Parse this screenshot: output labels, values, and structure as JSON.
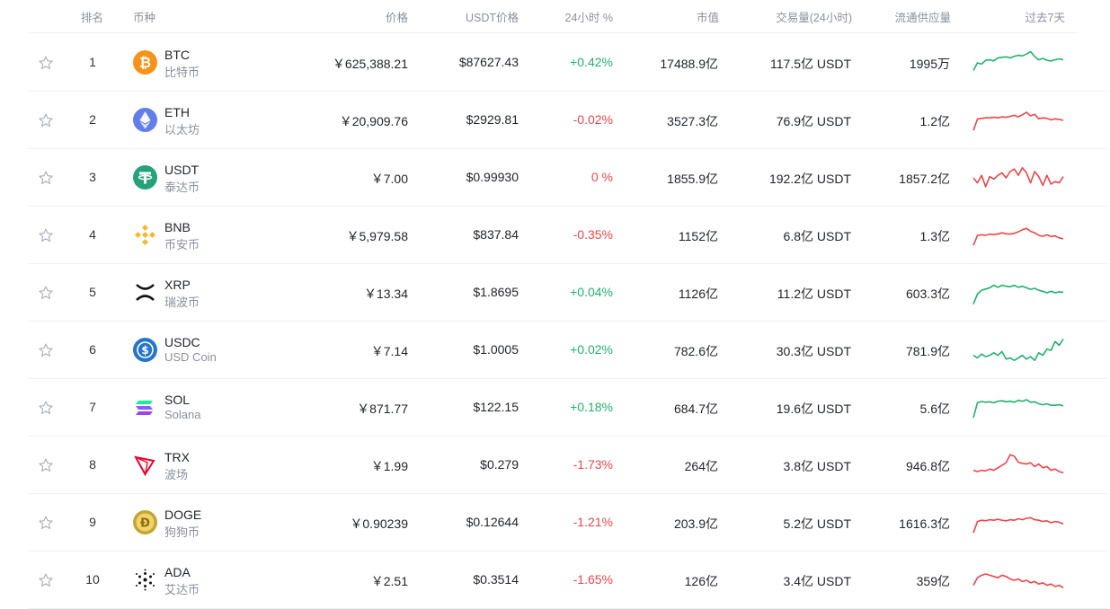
{
  "header": {
    "rank": "排名",
    "coin": "币种",
    "price": "价格",
    "usdt_price": "USDT价格",
    "change_24h": "24小时 %",
    "market_cap": "市值",
    "volume_24h": "交易量(24小时)",
    "supply": "流通供应量",
    "last_7d": "过去7天"
  },
  "colors": {
    "up": "#20b26c",
    "down": "#ef454a"
  },
  "rows": [
    {
      "rank": "1",
      "symbol": "BTC",
      "name": "比特币",
      "icon": "btc-icon",
      "price": "￥625,388.21",
      "usdt": "$87627.43",
      "change": "+0.42%",
      "trend": "up",
      "cap": "17488.9亿",
      "volume": "117.5亿 USDT",
      "supply": "1995万",
      "spark": [
        0.2,
        0.5,
        0.45,
        0.6,
        0.62,
        0.58,
        0.7,
        0.72,
        0.74,
        0.7,
        0.76,
        0.8,
        0.78,
        0.85,
        0.95,
        0.75,
        0.62,
        0.68,
        0.6,
        0.58,
        0.62,
        0.66,
        0.62
      ]
    },
    {
      "rank": "2",
      "symbol": "ETH",
      "name": "以太坊",
      "icon": "eth-icon",
      "price": "￥20,909.76",
      "usdt": "$2929.81",
      "change": "-0.02%",
      "trend": "down",
      "cap": "3527.3亿",
      "volume": "76.9亿 USDT",
      "supply": "1.2亿",
      "spark": [
        0.1,
        0.55,
        0.58,
        0.6,
        0.6,
        0.62,
        0.6,
        0.64,
        0.62,
        0.66,
        0.7,
        0.64,
        0.72,
        0.82,
        0.68,
        0.74,
        0.56,
        0.6,
        0.58,
        0.52,
        0.56,
        0.54,
        0.5
      ]
    },
    {
      "rank": "3",
      "symbol": "USDT",
      "name": "泰达币",
      "icon": "usdt-icon",
      "price": "￥7.00",
      "usdt": "$0.99930",
      "change": "0 %",
      "trend": "down",
      "cap": "1855.9亿",
      "volume": "192.2亿 USDT",
      "supply": "1857.2亿",
      "spark": [
        0.5,
        0.3,
        0.6,
        0.15,
        0.55,
        0.45,
        0.6,
        0.7,
        0.5,
        0.75,
        0.85,
        0.6,
        0.9,
        0.7,
        0.3,
        0.75,
        0.55,
        0.2,
        0.6,
        0.25,
        0.35,
        0.3,
        0.55
      ]
    },
    {
      "rank": "4",
      "symbol": "BNB",
      "name": "币安币",
      "icon": "bnb-icon",
      "price": "￥5,979.58",
      "usdt": "$837.84",
      "change": "-0.35%",
      "trend": "down",
      "cap": "1152亿",
      "volume": "6.8亿 USDT",
      "supply": "1.3亿",
      "spark": [
        0.1,
        0.5,
        0.52,
        0.5,
        0.55,
        0.53,
        0.55,
        0.6,
        0.56,
        0.55,
        0.58,
        0.64,
        0.72,
        0.78,
        0.66,
        0.6,
        0.5,
        0.46,
        0.52,
        0.45,
        0.48,
        0.4,
        0.36
      ]
    },
    {
      "rank": "5",
      "symbol": "XRP",
      "name": "瑞波币",
      "icon": "xrp-icon",
      "price": "￥13.34",
      "usdt": "$1.8695",
      "change": "+0.04%",
      "trend": "up",
      "cap": "1126亿",
      "volume": "11.2亿 USDT",
      "supply": "603.3亿",
      "spark": [
        0.05,
        0.45,
        0.6,
        0.65,
        0.7,
        0.8,
        0.72,
        0.8,
        0.76,
        0.74,
        0.8,
        0.72,
        0.76,
        0.7,
        0.64,
        0.68,
        0.6,
        0.56,
        0.5,
        0.56,
        0.5,
        0.54,
        0.52
      ]
    },
    {
      "rank": "6",
      "symbol": "USDC",
      "name": "USD Coin",
      "icon": "usdc-icon",
      "price": "￥7.14",
      "usdt": "$1.0005",
      "change": "+0.02%",
      "trend": "up",
      "cap": "782.6亿",
      "volume": "30.3亿 USDT",
      "supply": "781.9亿",
      "spark": [
        0.3,
        0.2,
        0.35,
        0.25,
        0.3,
        0.4,
        0.3,
        0.45,
        0.15,
        0.2,
        0.1,
        0.2,
        0.3,
        0.15,
        0.25,
        0.1,
        0.4,
        0.3,
        0.55,
        0.5,
        0.85,
        0.7,
        0.95
      ]
    },
    {
      "rank": "7",
      "symbol": "SOL",
      "name": "Solana",
      "icon": "sol-icon",
      "price": "￥871.77",
      "usdt": "$122.15",
      "change": "+0.18%",
      "trend": "up",
      "cap": "684.7亿",
      "volume": "19.6亿 USDT",
      "supply": "5.6亿",
      "spark": [
        0.1,
        0.7,
        0.75,
        0.72,
        0.74,
        0.7,
        0.76,
        0.78,
        0.74,
        0.76,
        0.72,
        0.8,
        0.76,
        0.82,
        0.72,
        0.74,
        0.66,
        0.62,
        0.66,
        0.6,
        0.6,
        0.62,
        0.58
      ]
    },
    {
      "rank": "8",
      "symbol": "TRX",
      "name": "波场",
      "icon": "trx-icon",
      "price": "￥1.99",
      "usdt": "$0.279",
      "change": "-1.73%",
      "trend": "down",
      "cap": "264亿",
      "volume": "3.8亿 USDT",
      "supply": "946.8亿",
      "spark": [
        0.3,
        0.25,
        0.3,
        0.28,
        0.35,
        0.3,
        0.4,
        0.5,
        0.6,
        0.92,
        0.86,
        0.62,
        0.58,
        0.55,
        0.6,
        0.45,
        0.55,
        0.4,
        0.45,
        0.3,
        0.35,
        0.25,
        0.2
      ]
    },
    {
      "rank": "9",
      "symbol": "DOGE",
      "name": "狗狗币",
      "icon": "doge-icon",
      "price": "￥0.90239",
      "usdt": "$0.12644",
      "change": "-1.21%",
      "trend": "down",
      "cap": "203.9亿",
      "volume": "5.2亿 USDT",
      "supply": "1616.3亿",
      "spark": [
        0.1,
        0.55,
        0.6,
        0.58,
        0.62,
        0.6,
        0.64,
        0.6,
        0.58,
        0.62,
        0.6,
        0.66,
        0.62,
        0.68,
        0.7,
        0.62,
        0.6,
        0.55,
        0.58,
        0.5,
        0.55,
        0.52,
        0.45
      ]
    },
    {
      "rank": "10",
      "symbol": "ADA",
      "name": "艾达币",
      "icon": "ada-icon",
      "price": "￥2.51",
      "usdt": "$0.3514",
      "change": "-1.65%",
      "trend": "down",
      "cap": "126亿",
      "volume": "3.4亿 USDT",
      "supply": "359亿",
      "spark": [
        0.3,
        0.6,
        0.7,
        0.75,
        0.7,
        0.65,
        0.6,
        0.7,
        0.65,
        0.55,
        0.5,
        0.55,
        0.45,
        0.5,
        0.4,
        0.45,
        0.35,
        0.4,
        0.3,
        0.35,
        0.25,
        0.3,
        0.2
      ]
    }
  ]
}
